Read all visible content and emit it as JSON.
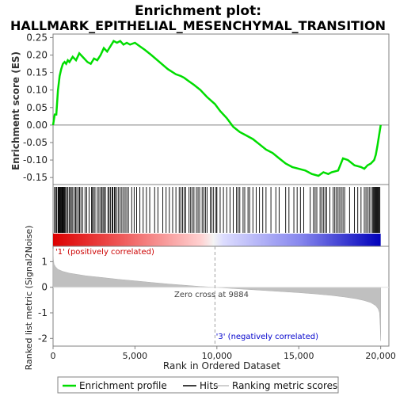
{
  "chart_data": {
    "type": "line",
    "title_line1": "Enrichment plot:",
    "title_line2": "HALLMARK_EPITHELIAL_MESENCHYMAL_TRANSITION",
    "es_panel": {
      "ylabel": "Enrichment score (ES)",
      "ylim": [
        -0.17,
        0.26
      ],
      "yticks": [
        -0.15,
        -0.1,
        -0.05,
        0.0,
        0.05,
        0.1,
        0.15,
        0.2,
        0.25
      ],
      "ytick_labels": [
        "-0.15",
        "-0.10",
        "-0.05",
        "0.00",
        "0.05",
        "0.10",
        "0.15",
        "0.20",
        "0.25"
      ],
      "series_color": "#00dd00",
      "x": [
        0,
        100,
        200,
        300,
        400,
        500,
        600,
        700,
        800,
        900,
        1000,
        1200,
        1400,
        1600,
        1700,
        1900,
        2100,
        2300,
        2500,
        2700,
        2900,
        3100,
        3300,
        3500,
        3700,
        3900,
        4100,
        4300,
        4500,
        4700,
        5000,
        5300,
        5600,
        6000,
        6500,
        7000,
        7500,
        7800,
        8000,
        8300,
        8600,
        9000,
        9400,
        9884,
        10200,
        10600,
        11000,
        11400,
        11800,
        12200,
        12600,
        13000,
        13400,
        13800,
        14200,
        14600,
        15000,
        15400,
        15800,
        16200,
        16500,
        16800,
        17000,
        17400,
        17700,
        18000,
        18400,
        18800,
        19000,
        19200,
        19400,
        19600,
        19700,
        19800,
        19900,
        20000
      ],
      "y": [
        0.0,
        0.03,
        0.03,
        0.1,
        0.14,
        0.16,
        0.175,
        0.18,
        0.175,
        0.185,
        0.18,
        0.195,
        0.185,
        0.205,
        0.2,
        0.19,
        0.18,
        0.175,
        0.19,
        0.185,
        0.2,
        0.22,
        0.21,
        0.225,
        0.24,
        0.235,
        0.24,
        0.23,
        0.235,
        0.23,
        0.235,
        0.225,
        0.215,
        0.2,
        0.18,
        0.16,
        0.145,
        0.14,
        0.135,
        0.125,
        0.115,
        0.1,
        0.08,
        0.06,
        0.04,
        0.02,
        -0.005,
        -0.02,
        -0.03,
        -0.04,
        -0.055,
        -0.07,
        -0.08,
        -0.095,
        -0.11,
        -0.12,
        -0.125,
        -0.13,
        -0.14,
        -0.145,
        -0.135,
        -0.14,
        -0.135,
        -0.13,
        -0.095,
        -0.1,
        -0.115,
        -0.12,
        -0.125,
        -0.115,
        -0.11,
        -0.1,
        -0.085,
        -0.06,
        -0.03,
        0.0
      ],
      "hits": [
        90,
        150,
        220,
        300,
        340,
        380,
        420,
        460,
        500,
        540,
        580,
        620,
        660,
        700,
        760,
        820,
        900,
        980,
        1050,
        1120,
        1200,
        1300,
        1380,
        1450,
        1550,
        1620,
        1700,
        1800,
        1950,
        2050,
        2200,
        2350,
        2400,
        2480,
        2560,
        2700,
        2800,
        2900,
        2980,
        3050,
        3120,
        3200,
        3350,
        3420,
        3500,
        3600,
        3650,
        3750,
        3800,
        3900,
        4000,
        4100,
        4200,
        4300,
        4400,
        4500,
        4600,
        4800,
        4950,
        5100,
        5300,
        5500,
        5700,
        5900,
        6200,
        6400,
        6700,
        6900,
        7100,
        7300,
        7500,
        7700,
        7800,
        7900,
        8000,
        8100,
        8300,
        8400,
        8500,
        8600,
        8750,
        8850,
        8950,
        9100,
        9200,
        9300,
        9400,
        9600,
        9700,
        9800,
        9950,
        10000,
        10200,
        10400,
        10600,
        10800,
        11000,
        11200,
        11300,
        11400,
        11600,
        11700,
        11900,
        12000,
        12200,
        12400,
        12600,
        12800,
        13000,
        13300,
        13600,
        13800,
        14200,
        14400,
        14700,
        14900,
        15100,
        15300,
        15700,
        15900,
        16000,
        16100,
        16300,
        16400,
        16500,
        16600,
        16700,
        16900,
        17100,
        17200,
        17300,
        17400,
        17500,
        17600,
        17700,
        17800,
        18100,
        18400,
        18600,
        18800,
        19000,
        19100,
        19200,
        19300,
        19400,
        19500,
        19550,
        19600,
        19650,
        19700,
        19750,
        19800,
        19850,
        19900,
        19950
      ]
    },
    "heat_labels": {
      "positive": "'1' (positively correlated)",
      "negative": "'3' (negatively correlated)"
    },
    "metric_panel": {
      "ylabel": "Ranked list metric (Signal2Noise)",
      "ylim": [
        -2.3,
        1.6
      ],
      "yticks": [
        -2,
        -1,
        0,
        1
      ],
      "ytick_labels": [
        "-2",
        "-1",
        "0",
        "1"
      ],
      "zero_cross_label": "Zero cross at 9884",
      "zero_cross": 9884,
      "x": [
        0,
        20,
        60,
        150,
        300,
        600,
        1000,
        2000,
        3000,
        4000,
        5000,
        6000,
        7000,
        8000,
        9000,
        9884,
        11000,
        12000,
        13000,
        14000,
        15000,
        16000,
        17000,
        17800,
        18500,
        19000,
        19400,
        19700,
        19850,
        19930,
        19970,
        20000
      ],
      "y": [
        1.5,
        1.1,
        0.9,
        0.8,
        0.7,
        0.62,
        0.55,
        0.45,
        0.38,
        0.31,
        0.25,
        0.19,
        0.13,
        0.08,
        0.03,
        0.0,
        -0.05,
        -0.09,
        -0.13,
        -0.17,
        -0.21,
        -0.26,
        -0.32,
        -0.38,
        -0.45,
        -0.52,
        -0.6,
        -0.72,
        -0.85,
        -1.0,
        -1.5,
        -2.1
      ],
      "fill_color": "#c0c0c0"
    },
    "xaxis": {
      "xlabel": "Rank in Ordered Dataset",
      "xlim": [
        0,
        20500
      ],
      "xticks": [
        0,
        5000,
        10000,
        15000,
        20000
      ],
      "xtick_labels": [
        "0",
        "5,000",
        "10,000",
        "15,000",
        "20,000"
      ]
    },
    "legend": {
      "items": [
        {
          "label": "Enrichment profile",
          "color": "#00dd00"
        },
        {
          "label": "Hits",
          "color": "#000000"
        },
        {
          "label": "Ranking metric scores",
          "color": "#c0c0c0"
        }
      ]
    }
  }
}
